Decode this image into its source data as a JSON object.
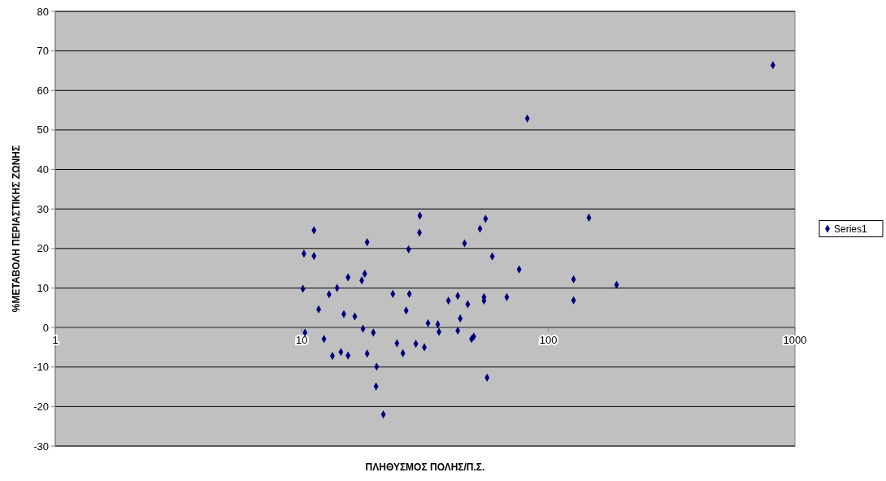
{
  "chart_data": {
    "type": "scatter",
    "xlabel": "ΠΛΗΘΥΣΜΟΣ ΠΟΛΗΣ/Π.Σ.",
    "ylabel": "%ΜΕΤΑΒΟΛΗ ΠΕΡΙΑΣΤΙΚΗΣ ΖΩΝΗΣ",
    "log": "x",
    "xlim": [
      1,
      1000
    ],
    "xticks": [
      1,
      10,
      100,
      1000
    ],
    "ylim": [
      -30,
      80
    ],
    "yticks": [
      -30,
      -20,
      -10,
      0,
      10,
      20,
      30,
      40,
      50,
      60,
      70,
      80
    ],
    "grid": "y",
    "legend": "right",
    "marker": "diamond",
    "series": [
      {
        "name": "Series1",
        "color": "#000080",
        "x": [
          10.2,
          10.1,
          10.3,
          11.2,
          11.2,
          11.7,
          12.3,
          12.9,
          13.3,
          13.9,
          14.4,
          14.8,
          15.4,
          15.4,
          16.4,
          17.5,
          17.7,
          18.0,
          18.4,
          18.4,
          19.5,
          20.1,
          20.0,
          21.4,
          23.4,
          24.3,
          25.7,
          26.5,
          27.1,
          27.3,
          29.0,
          30.0,
          30.1,
          31.4,
          32.5,
          35.6,
          36.0,
          39.3,
          42.9,
          42.9,
          43.9,
          45.7,
          47.1,
          48.8,
          49.8,
          52.8,
          54.8,
          54.8,
          55.6,
          56.4,
          59.2,
          67.8,
          76.1,
          82.1,
          126.5,
          126.5,
          146,
          189,
          814
        ],
        "values": [
          18.7,
          9.8,
          -1.3,
          18.1,
          24.6,
          4.6,
          -2.9,
          8.4,
          -7.2,
          10,
          -6.2,
          3.4,
          12.7,
          -7.1,
          2.8,
          11.9,
          -0.3,
          13.6,
          21.6,
          -6.6,
          -1.3,
          -9.9,
          -14.9,
          -22,
          8.5,
          -4,
          -6.5,
          4.3,
          19.8,
          8.5,
          -4.1,
          24,
          28.3,
          -5,
          1.1,
          0.8,
          -1.1,
          6.8,
          8,
          -0.8,
          2.3,
          21.3,
          5.9,
          -2.9,
          -2.3,
          25,
          7.7,
          6.8,
          27.5,
          -12.7,
          18,
          7.7,
          14.7,
          52.9,
          12.2,
          6.9,
          27.8,
          10.8,
          66.4
        ]
      }
    ]
  }
}
